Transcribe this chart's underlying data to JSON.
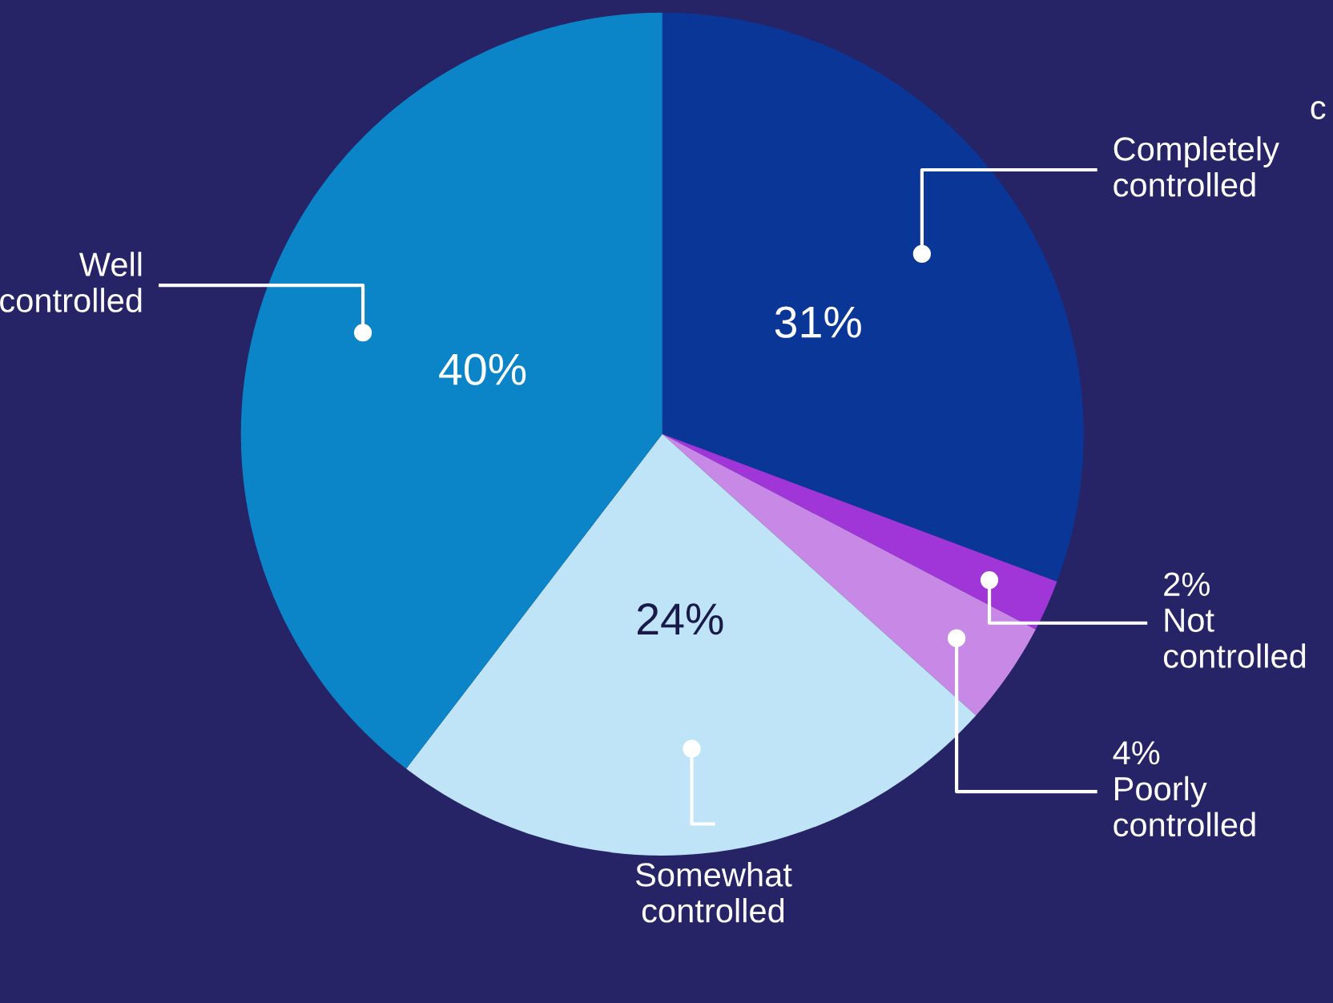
{
  "chart_data": {
    "type": "pie",
    "categories": [
      "Completely controlled",
      "Not controlled",
      "Poorly controlled",
      "Somewhat controlled",
      "Well controlled"
    ],
    "values": [
      31,
      2,
      4,
      24,
      40
    ],
    "value_labels": [
      "31%",
      "2%",
      "4%",
      "24%",
      "40%"
    ],
    "colors": [
      "#0a3797",
      "#a035d8",
      "#c788e6",
      "#bfe4f7",
      "#0b85c8"
    ],
    "annotations": [
      "c"
    ],
    "legend": false
  }
}
